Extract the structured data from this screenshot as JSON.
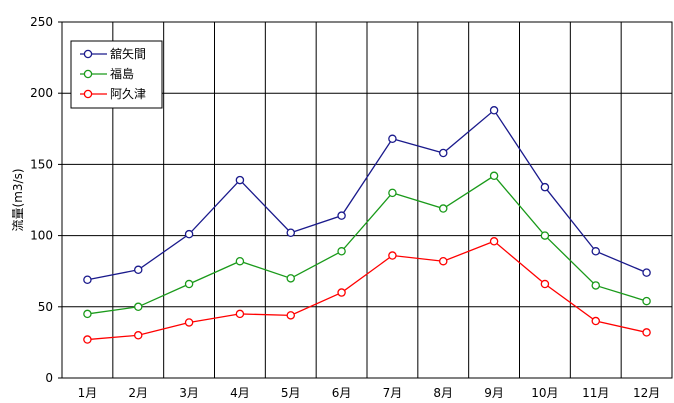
{
  "chart_data": {
    "type": "line",
    "ylabel": "流量(m3/s)",
    "ylim": [
      0,
      250
    ],
    "yticks": [
      0,
      50,
      100,
      150,
      200,
      250
    ],
    "grid": true,
    "legend_position": "top-left",
    "categories": [
      "1月",
      "2月",
      "3月",
      "4月",
      "5月",
      "6月",
      "7月",
      "8月",
      "9月",
      "10月",
      "11月",
      "12月"
    ],
    "series": [
      {
        "name": "舘矢間",
        "color": "#1a1a8c",
        "values": [
          69,
          76,
          101,
          139,
          102,
          114,
          168,
          158,
          188,
          134,
          89,
          74
        ]
      },
      {
        "name": "福島",
        "color": "#1a9a1a",
        "values": [
          45,
          50,
          66,
          82,
          70,
          89,
          130,
          119,
          142,
          100,
          65,
          54
        ]
      },
      {
        "name": "阿久津",
        "color": "#ff0000",
        "values": [
          27,
          30,
          39,
          45,
          44,
          60,
          86,
          82,
          96,
          66,
          40,
          32
        ]
      }
    ]
  }
}
